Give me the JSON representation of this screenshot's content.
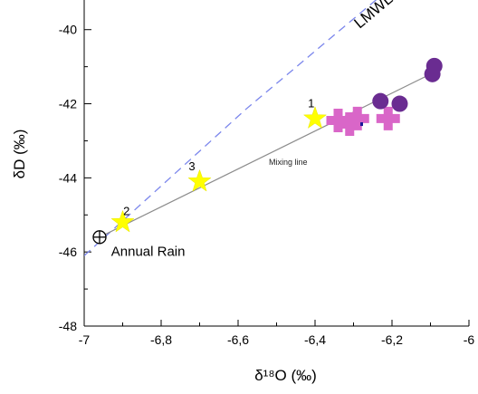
{
  "chart_data": {
    "type": "scatter",
    "title": "",
    "xlabel": "δ¹⁸O (‰)",
    "ylabel": "δD (‰)",
    "xlim": [
      -7,
      -6
    ],
    "ylim": [
      -48,
      -39.2
    ],
    "x_ticks": [
      -7,
      -6.8,
      -6.6,
      -6.4,
      -6.2,
      -6
    ],
    "x_tick_labels": [
      "-7",
      "-6,8",
      "-6,6",
      "-6,4",
      "-6,2",
      "-6"
    ],
    "y_ticks": [
      -48,
      -46,
      -44,
      -42,
      -40
    ],
    "y_tick_labels": [
      "-48",
      "-46",
      "-44",
      "-42",
      "-40"
    ],
    "grid": false,
    "lines": [
      {
        "label": "LMWL",
        "style": "dashed",
        "color": "#7b86ec",
        "points": [
          [
            -7.0,
            -46.1
          ],
          [
            -6.58,
            -42.15
          ],
          [
            -6.15,
            -38.4
          ]
        ]
      },
      {
        "label": "Mixing line",
        "style": "solid",
        "color": "#8c8c8c",
        "points": [
          [
            -6.96,
            -45.6
          ],
          [
            -6.09,
            -41.15
          ]
        ]
      }
    ],
    "series": [
      {
        "marker": "star",
        "color": "#ffff00",
        "points": [
          [
            -6.9,
            -45.2
          ],
          [
            -6.7,
            -44.1
          ],
          [
            -6.4,
            -42.4
          ]
        ]
      },
      {
        "marker": "plus",
        "color": "#d966c8",
        "points": [
          [
            -6.34,
            -42.45
          ],
          [
            -6.31,
            -42.55
          ],
          [
            -6.29,
            -42.4
          ],
          [
            -6.21,
            -42.4
          ]
        ]
      },
      {
        "marker": "circle",
        "color": "#6a2c91",
        "points": [
          [
            -6.23,
            -41.93
          ],
          [
            -6.18,
            -42.0
          ],
          [
            -6.095,
            -41.2
          ],
          [
            -6.09,
            -40.98
          ]
        ]
      },
      {
        "marker": "crossed-circle",
        "color": "#000000",
        "points": [
          [
            -6.96,
            -45.6
          ]
        ]
      }
    ],
    "annotations": [
      {
        "text": "1",
        "x": -6.41,
        "y": -42.1
      },
      {
        "text": "2",
        "x": -6.89,
        "y": -45.0
      },
      {
        "text": "3",
        "x": -6.72,
        "y": -43.8
      },
      {
        "text": "Mixing line",
        "x": -6.52,
        "y": -43.65
      },
      {
        "text": "Annual Rain",
        "x": -6.93,
        "y": -46.1
      },
      {
        "text": "LMWL",
        "x": -6.24,
        "y": -39.6
      }
    ]
  },
  "colors": {
    "axis": "#000000",
    "background": "#ffffff"
  }
}
